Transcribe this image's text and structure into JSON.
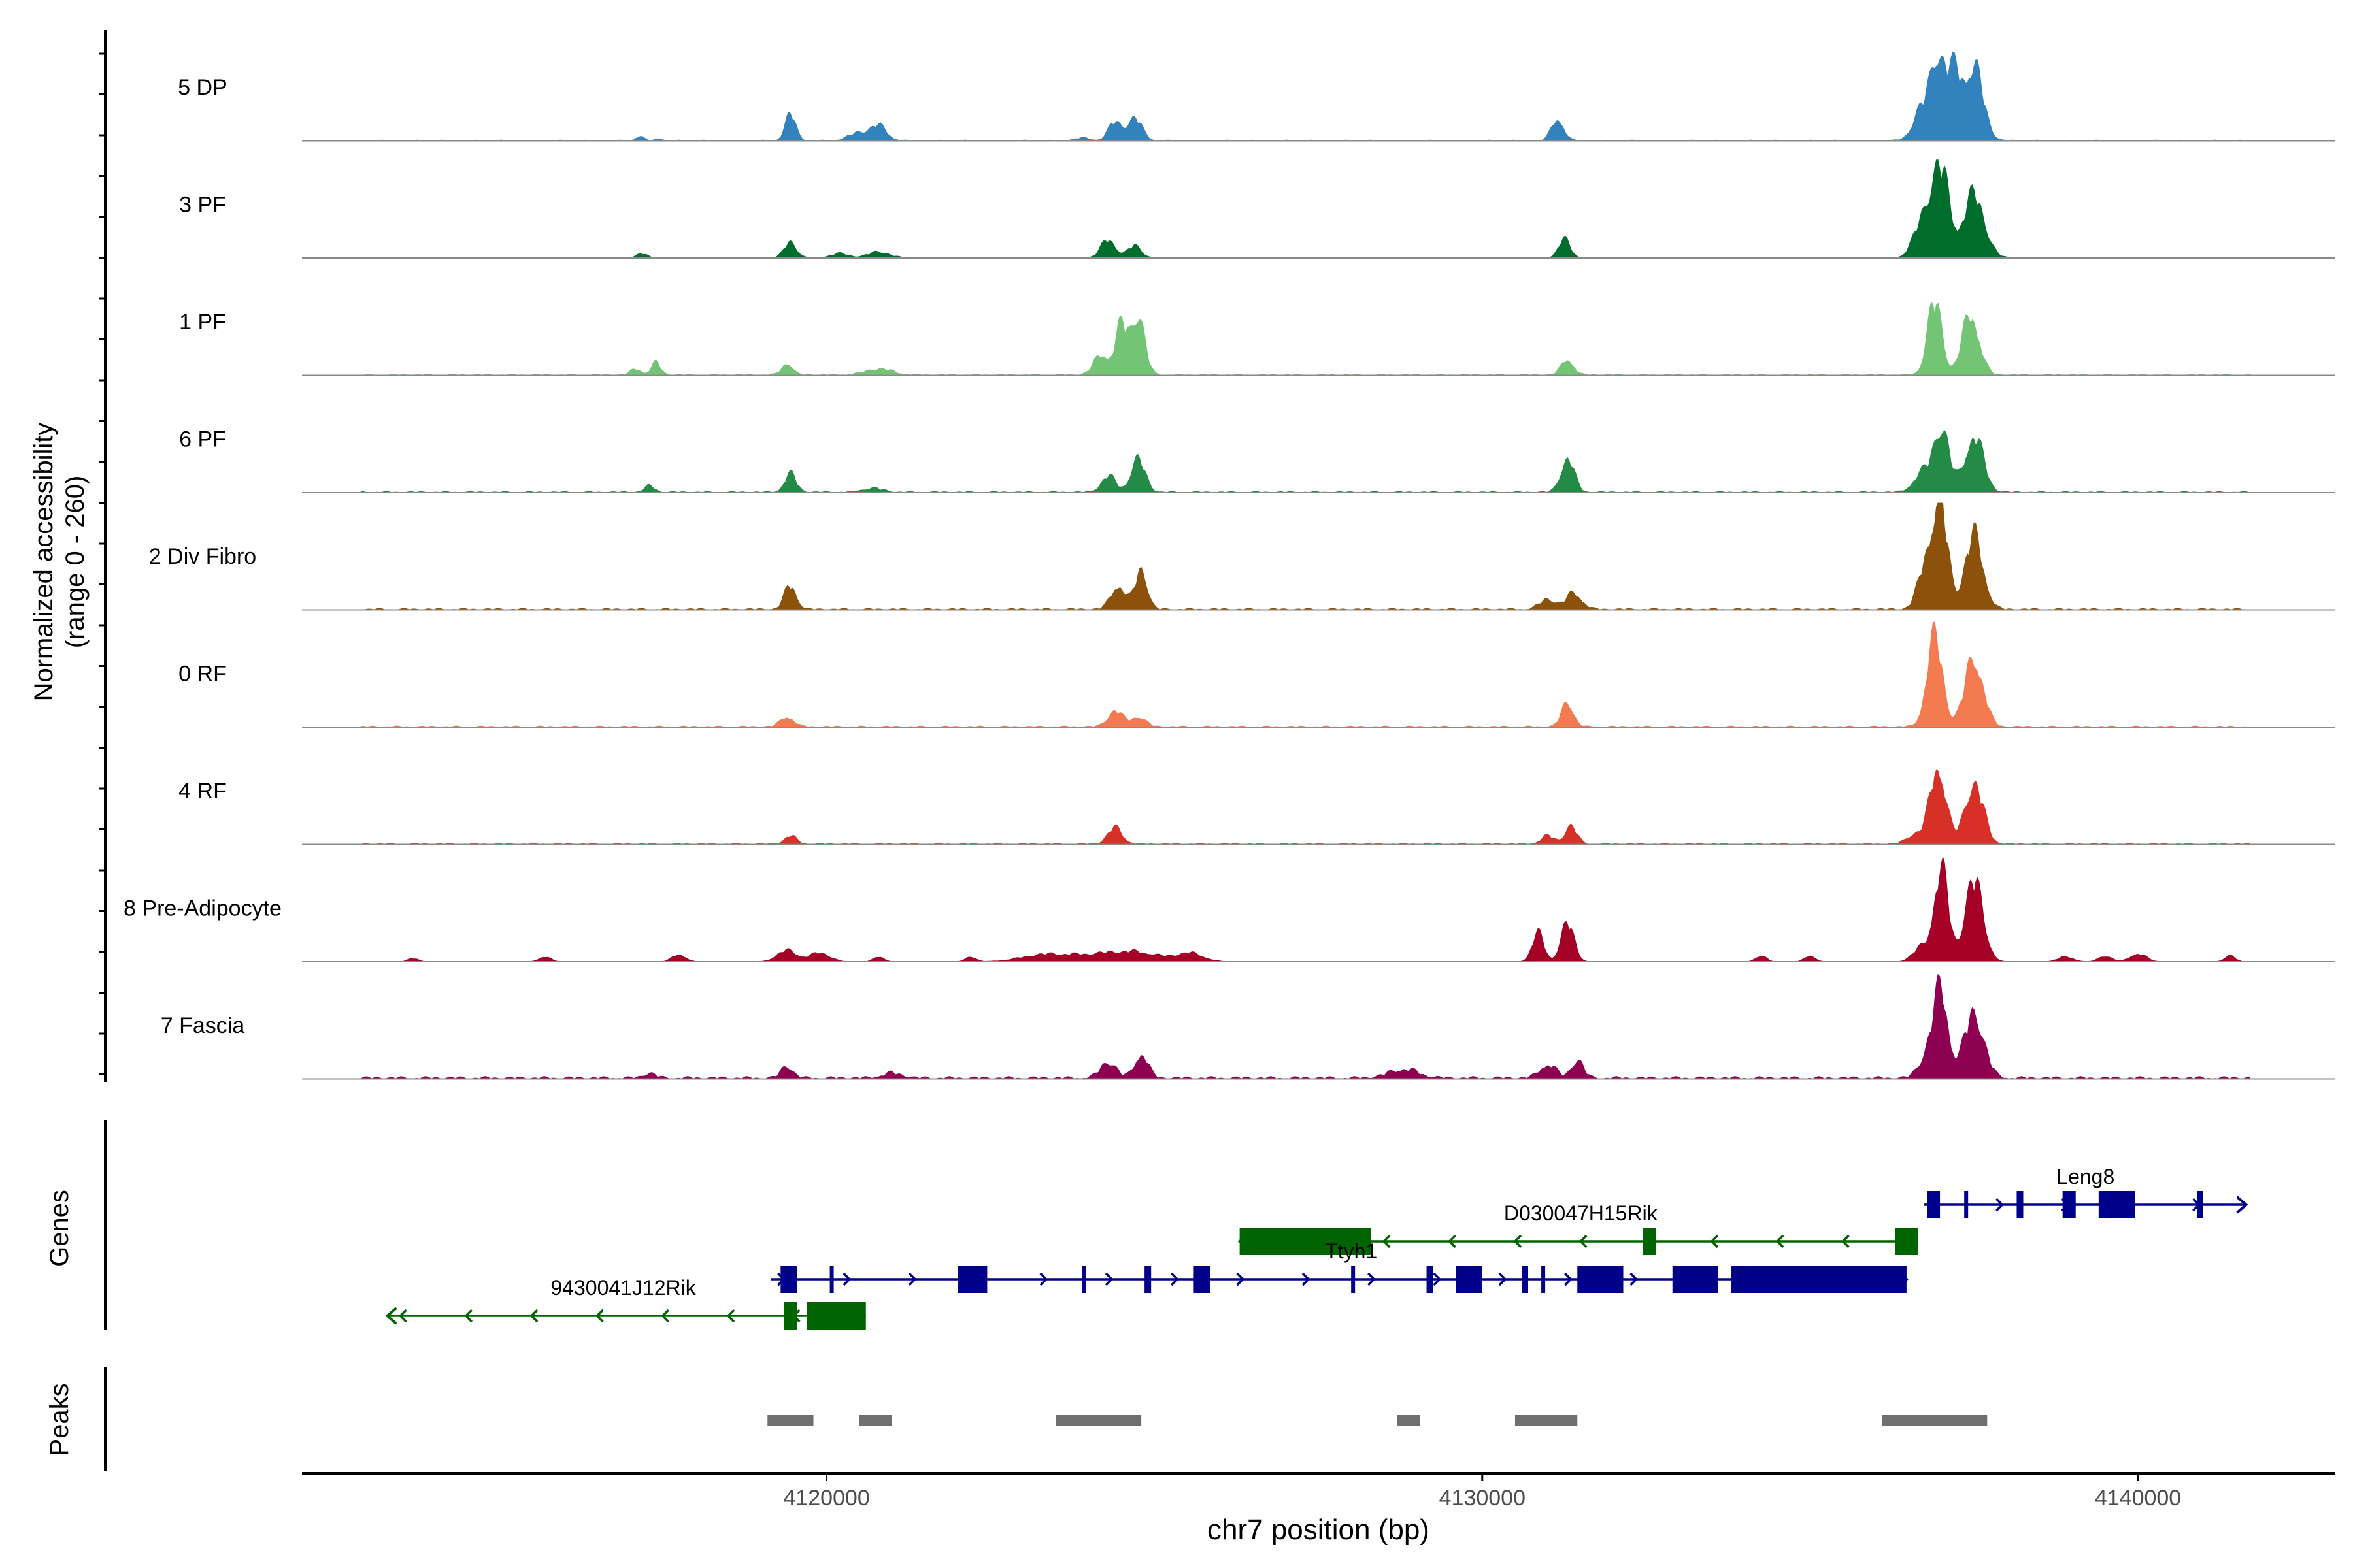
{
  "chart_data": {
    "type": "coverage-track",
    "ylabel": [
      "Normalized accessibility",
      "(range 0 - 260)"
    ],
    "y_range": [
      0,
      260
    ],
    "xlabel": "chr7 position (bp)",
    "x_range": [
      4112000,
      4143000
    ],
    "x_ticks": [
      4120000,
      4130000,
      4140000
    ],
    "x_tick_labels": [
      "4120000",
      "4130000",
      "4140000"
    ],
    "track_labels": {
      "genes": "Genes",
      "peaks": "Peaks"
    },
    "series": [
      {
        "name": "5 DP",
        "color": "#3182BD",
        "baseline": 2,
        "peaks": [
          [
            4117150,
            10,
            60
          ],
          [
            4117450,
            5,
            50
          ],
          [
            4119450,
            65,
            80
          ],
          [
            4120500,
            20,
            150
          ],
          [
            4120800,
            35,
            120
          ],
          [
            4123900,
            6,
            120
          ],
          [
            4124400,
            45,
            100
          ],
          [
            4124700,
            55,
            110
          ],
          [
            4131150,
            55,
            90
          ],
          [
            4136700,
            75,
            130
          ],
          [
            4136950,
            200,
            110
          ],
          [
            4137200,
            150,
            110
          ],
          [
            4137500,
            180,
            140
          ]
        ]
      },
      {
        "name": "3 PF",
        "color": "#006D2C",
        "baseline": 2,
        "peaks": [
          [
            4117200,
            10,
            80
          ],
          [
            4119450,
            40,
            90
          ],
          [
            4120200,
            10,
            150
          ],
          [
            4120800,
            15,
            150
          ],
          [
            4124300,
            45,
            110
          ],
          [
            4124700,
            30,
            100
          ],
          [
            4131250,
            45,
            90
          ],
          [
            4136750,
            100,
            150
          ],
          [
            4137000,
            200,
            130
          ],
          [
            4137500,
            155,
            160
          ]
        ]
      },
      {
        "name": "1 PF",
        "color": "#74C476",
        "baseline": 3,
        "peaks": [
          [
            4117100,
            15,
            80
          ],
          [
            4117400,
            30,
            70
          ],
          [
            4119400,
            30,
            80
          ],
          [
            4120800,
            15,
            200
          ],
          [
            4124200,
            50,
            120
          ],
          [
            4124500,
            120,
            90
          ],
          [
            4124750,
            150,
            100
          ],
          [
            4131300,
            40,
            90
          ],
          [
            4136900,
            180,
            110
          ],
          [
            4137450,
            150,
            130
          ]
        ]
      },
      {
        "name": "6 PF",
        "color": "#238B45",
        "baseline": 3,
        "peaks": [
          [
            4117300,
            15,
            80
          ],
          [
            4119450,
            45,
            90
          ],
          [
            4120700,
            10,
            150
          ],
          [
            4124300,
            40,
            110
          ],
          [
            4124750,
            80,
            110
          ],
          [
            4131300,
            85,
            100
          ],
          [
            4136700,
            45,
            130
          ],
          [
            4137000,
            160,
            120
          ],
          [
            4137500,
            140,
            140
          ]
        ]
      },
      {
        "name": "2 Div Fibro",
        "color": "#8C510A",
        "baseline": 4,
        "peaks": [
          [
            4119450,
            60,
            90
          ],
          [
            4124450,
            60,
            110
          ],
          [
            4124800,
            100,
            90
          ],
          [
            4131000,
            25,
            120
          ],
          [
            4131400,
            40,
            120
          ],
          [
            4136800,
            130,
            130
          ],
          [
            4137000,
            220,
            110
          ],
          [
            4137500,
            180,
            140
          ]
        ]
      },
      {
        "name": "0 RF",
        "color": "#F47A50",
        "baseline": 3,
        "peaks": [
          [
            4119400,
            25,
            100
          ],
          [
            4124400,
            40,
            110
          ],
          [
            4124750,
            25,
            110
          ],
          [
            4131300,
            60,
            90
          ],
          [
            4136900,
            220,
            120
          ],
          [
            4137500,
            170,
            140
          ]
        ]
      },
      {
        "name": "4 RF",
        "color": "#D73027",
        "baseline": 3,
        "peaks": [
          [
            4119450,
            20,
            90
          ],
          [
            4124400,
            40,
            110
          ],
          [
            4131000,
            20,
            100
          ],
          [
            4131350,
            45,
            90
          ],
          [
            4136600,
            25,
            120
          ],
          [
            4136950,
            195,
            120
          ],
          [
            4137500,
            150,
            140
          ]
        ]
      },
      {
        "name": "8 Pre-Adipocyte",
        "color": "#A50026",
        "baseline": 0,
        "peaks": [
          [
            4112700,
            10,
            80
          ],
          [
            4113700,
            8,
            80
          ],
          [
            4115700,
            12,
            90
          ],
          [
            4117750,
            18,
            100
          ],
          [
            4119400,
            28,
            150
          ],
          [
            4119900,
            22,
            150
          ],
          [
            4120800,
            12,
            80
          ],
          [
            4122200,
            12,
            80
          ],
          [
            4123300,
            15,
            350
          ],
          [
            4124200,
            18,
            500
          ],
          [
            4124800,
            15,
            350
          ],
          [
            4125550,
            20,
            200
          ],
          [
            4130850,
            70,
            90
          ],
          [
            4131300,
            95,
            100
          ],
          [
            4134250,
            15,
            80
          ],
          [
            4135000,
            15,
            80
          ],
          [
            4136700,
            35,
            130
          ],
          [
            4137000,
            225,
            110
          ],
          [
            4137500,
            200,
            140
          ],
          [
            4138900,
            12,
            120
          ],
          [
            4139500,
            14,
            100
          ],
          [
            4140000,
            20,
            120
          ],
          [
            4141400,
            15,
            80
          ]
        ]
      },
      {
        "name": "7 Fascia",
        "color": "#8E0152",
        "baseline": 6,
        "peaks": [
          [
            4117300,
            12,
            90
          ],
          [
            4119400,
            30,
            90
          ],
          [
            4121000,
            12,
            150
          ],
          [
            4124300,
            40,
            120
          ],
          [
            4124800,
            60,
            100
          ],
          [
            4128800,
            22,
            220
          ],
          [
            4131000,
            35,
            120
          ],
          [
            4131450,
            45,
            90
          ],
          [
            4136800,
            60,
            130
          ],
          [
            4137000,
            200,
            110
          ],
          [
            4137500,
            160,
            150
          ]
        ]
      }
    ],
    "genes": [
      {
        "name": "Leng8",
        "strand": "+",
        "color": "#00008B",
        "row": 1,
        "start": 4136730,
        "end": 4141650,
        "exons": [
          [
            4136780,
            4136980
          ],
          [
            4137350,
            4137400
          ],
          [
            4138150,
            4138250
          ],
          [
            4138850,
            4139050
          ],
          [
            4139400,
            4139950
          ],
          [
            4140900,
            4140990
          ]
        ],
        "label_x": 4139200
      },
      {
        "name": "D030047H15Rik",
        "strand": "-",
        "color": "#006400",
        "row": 2,
        "start": 4126300,
        "end": 4136650,
        "exons": [
          [
            4126300,
            4128300
          ],
          [
            4132450,
            4132650
          ],
          [
            4136300,
            4136650
          ]
        ],
        "label_x": 4131500
      },
      {
        "name": "Ttyh1",
        "strand": "+",
        "color": "#00008B",
        "row": 3,
        "start": 4119150,
        "end": 4136470,
        "exons": [
          [
            4119300,
            4119550
          ],
          [
            4120050,
            4120100
          ],
          [
            4122000,
            4122450
          ],
          [
            4123900,
            4123950
          ],
          [
            4124850,
            4124950
          ],
          [
            4125600,
            4125850
          ],
          [
            4128000,
            4128050
          ],
          [
            4129150,
            4129250
          ],
          [
            4129600,
            4130000
          ],
          [
            4130600,
            4130700
          ],
          [
            4130900,
            4130950
          ],
          [
            4131450,
            4132150
          ],
          [
            4132900,
            4133600
          ],
          [
            4133800,
            4136470
          ]
        ],
        "label_x": 4128000
      },
      {
        "name": "9430041J12Rik",
        "strand": "-",
        "color": "#006400",
        "row": 4,
        "start": 4113300,
        "end": 4120600,
        "exons": [
          [
            4119350,
            4119550
          ],
          [
            4119700,
            4120600
          ]
        ],
        "label_x": 4116900
      }
    ],
    "peaks_track": [
      [
        4119100,
        4119800
      ],
      [
        4120500,
        4121000
      ],
      [
        4123500,
        4124800
      ],
      [
        4128700,
        4129050
      ],
      [
        4130500,
        4131450
      ],
      [
        4136100,
        4137700
      ]
    ]
  }
}
